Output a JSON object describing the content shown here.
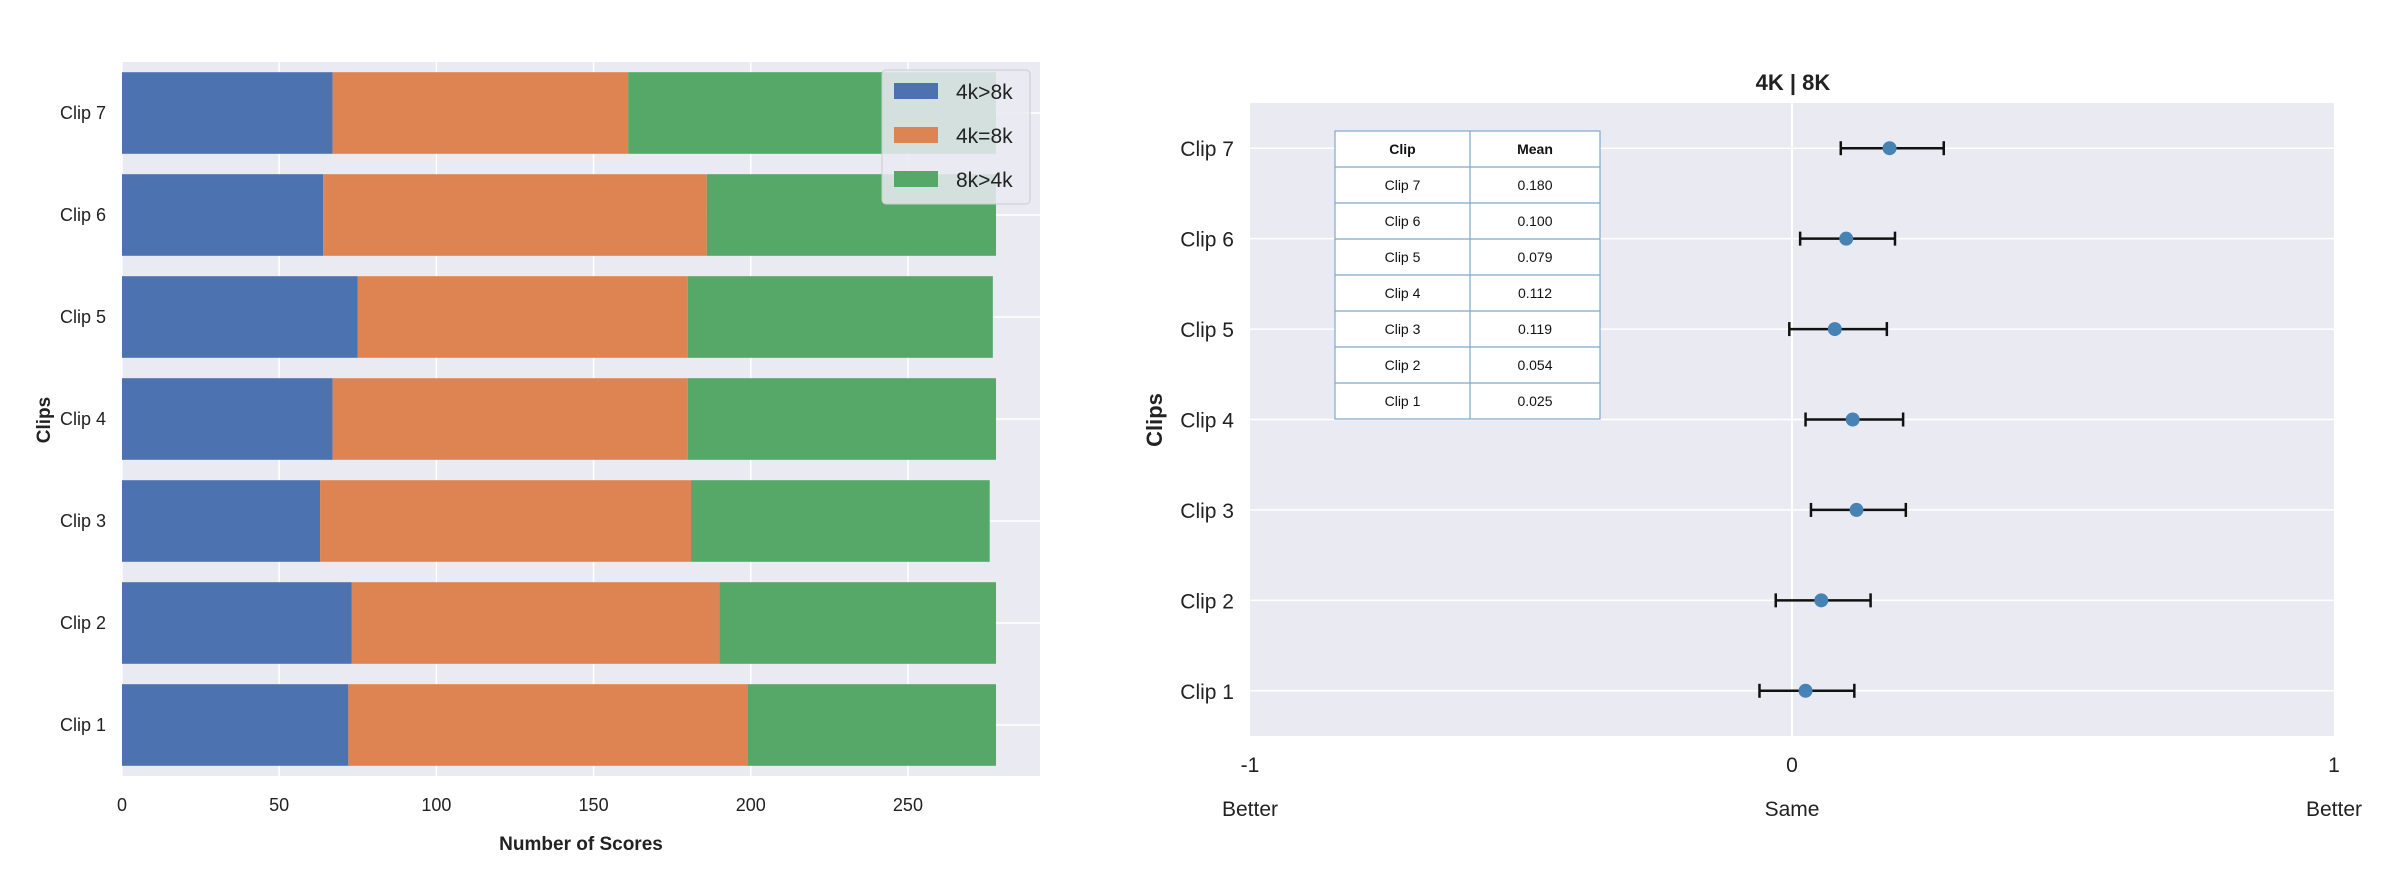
{
  "chart_data": [
    {
      "type": "bar",
      "orientation": "horizontal",
      "stacked": true,
      "title": "",
      "xlabel": "Number of Scores",
      "ylabel": "Clips",
      "categories": [
        "Clip 1",
        "Clip 2",
        "Clip 3",
        "Clip 4",
        "Clip 5",
        "Clip 6",
        "Clip 7"
      ],
      "series": [
        {
          "name": "4k>8k",
          "color": "#4c72b0",
          "values": [
            72,
            73,
            63,
            67,
            75,
            64,
            67
          ]
        },
        {
          "name": "4k=8k",
          "color": "#dd8452",
          "values": [
            127,
            117,
            118,
            113,
            105,
            122,
            94
          ]
        },
        {
          "name": "8k>4k",
          "color": "#55a868",
          "values": [
            79,
            88,
            95,
            98,
            97,
            92,
            117
          ]
        }
      ],
      "xlim": [
        0,
        292
      ],
      "xticks": [
        "0",
        "50",
        "100",
        "150",
        "200",
        "250"
      ],
      "grid": true,
      "legend": "top-right"
    },
    {
      "type": "scatter",
      "with_error_bars": true,
      "title": "4K | 8K",
      "ylabel": "Clips",
      "categories": [
        "Clip 1",
        "Clip 2",
        "Clip 3",
        "Clip 4",
        "Clip 5",
        "Clip 6",
        "Clip 7"
      ],
      "means": [
        0.025,
        0.054,
        0.119,
        0.112,
        0.079,
        0.1,
        0.18
      ],
      "ci_low": [
        -0.06,
        -0.03,
        0.035,
        0.025,
        -0.005,
        0.015,
        0.09
      ],
      "ci_high": [
        0.115,
        0.145,
        0.21,
        0.205,
        0.175,
        0.19,
        0.28
      ],
      "xlim": [
        -1,
        1
      ],
      "xticks": [
        "-1",
        "0",
        "1"
      ],
      "xlabels_below": [
        "Better",
        "Same",
        "Better"
      ],
      "point_color": "#4682b4",
      "grid": true,
      "table": {
        "headers": [
          "Clip",
          "Mean"
        ],
        "rows": [
          [
            "Clip 7",
            "0.180"
          ],
          [
            "Clip 6",
            "0.100"
          ],
          [
            "Clip 5",
            "0.079"
          ],
          [
            "Clip 4",
            "0.112"
          ],
          [
            "Clip 3",
            "0.119"
          ],
          [
            "Clip 2",
            "0.054"
          ],
          [
            "Clip 1",
            "0.025"
          ]
        ]
      }
    }
  ]
}
